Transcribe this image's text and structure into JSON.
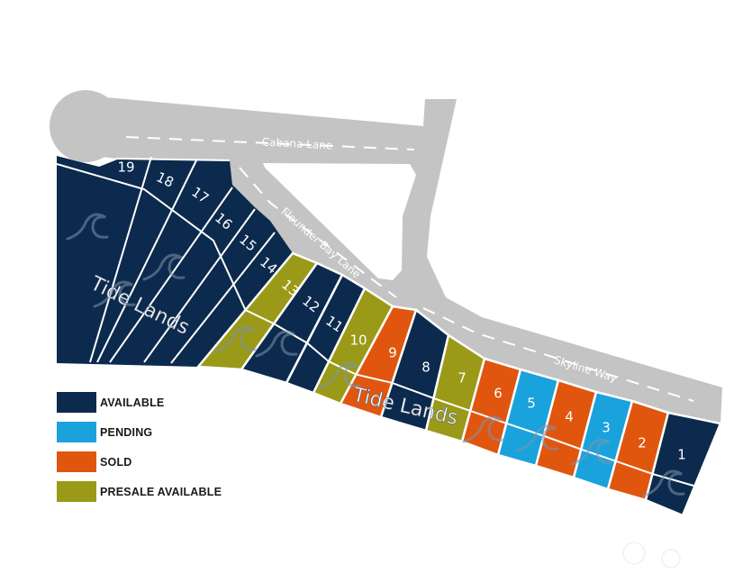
{
  "colors": {
    "available": "#0c2a4d",
    "pending": "#1aa2dc",
    "sold": "#e0560f",
    "presale": "#9a9a18",
    "road": "#c4c4c4",
    "wave": "#7d93ad"
  },
  "roads": {
    "cabana": "Cabana Lane",
    "flounder": "Flounder Bay Lane",
    "skyline": "Skyline Way"
  },
  "tide_lands": [
    "Tide Lands",
    "Tide Lands"
  ],
  "lots": [
    {
      "number": "1",
      "status": "available"
    },
    {
      "number": "2",
      "status": "sold"
    },
    {
      "number": "3",
      "status": "pending"
    },
    {
      "number": "4",
      "status": "sold"
    },
    {
      "number": "5",
      "status": "pending"
    },
    {
      "number": "6",
      "status": "sold"
    },
    {
      "number": "7",
      "status": "presale"
    },
    {
      "number": "8",
      "status": "available"
    },
    {
      "number": "9",
      "status": "sold"
    },
    {
      "number": "10",
      "status": "presale"
    },
    {
      "number": "11",
      "status": "available"
    },
    {
      "number": "12",
      "status": "available"
    },
    {
      "number": "13",
      "status": "presale"
    },
    {
      "number": "14",
      "status": "available"
    },
    {
      "number": "15",
      "status": "available"
    },
    {
      "number": "16",
      "status": "available"
    },
    {
      "number": "17",
      "status": "available"
    },
    {
      "number": "18",
      "status": "available"
    },
    {
      "number": "19",
      "status": "available"
    }
  ],
  "legend": [
    {
      "label": "AVAILABLE",
      "status": "available"
    },
    {
      "label": "PENDING",
      "status": "pending"
    },
    {
      "label": "SOLD",
      "status": "sold"
    },
    {
      "label": "PRESALE AVAILABLE",
      "status": "presale"
    }
  ]
}
